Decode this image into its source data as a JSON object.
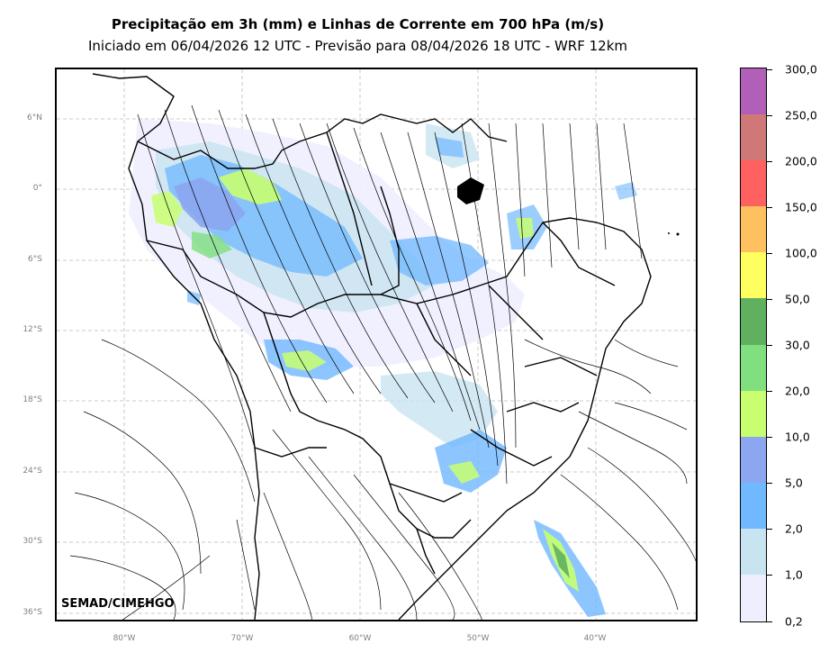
{
  "title": "Precipitação em 3h (mm) e Linhas de Corrente em 700 hPa (m/s)",
  "subtitle": "Iniciado em 06/04/2026 12 UTC - Previsão para 08/04/2026 18 UTC - WRF 12km",
  "credit": "SEMAD/CIMEHGO",
  "map": {
    "lat_labels": [
      "6°N",
      "0°",
      "6°S",
      "12°S",
      "18°S",
      "24°S",
      "30°S",
      "36°S"
    ],
    "lon_labels": [
      "80°W",
      "70°W",
      "60°W",
      "50°W",
      "40°W"
    ],
    "grid": true,
    "streamline_color": "#000000",
    "border_color": "#000000"
  },
  "colorbar": {
    "labels": [
      "300,0",
      "250,0",
      "200,0",
      "150,0",
      "100,0",
      "50,0",
      "30,0",
      "20,0",
      "10,0",
      "5,0",
      "2,0",
      "1,0",
      "0,2"
    ],
    "colors": [
      "#b060b8",
      "#d07878",
      "#ff6060",
      "#ffc060",
      "#ffff60",
      "#60b060",
      "#80e080",
      "#c8ff70",
      "#8ca6f0",
      "#70b8ff",
      "#c8e4f0",
      "#eeeeff"
    ]
  }
}
